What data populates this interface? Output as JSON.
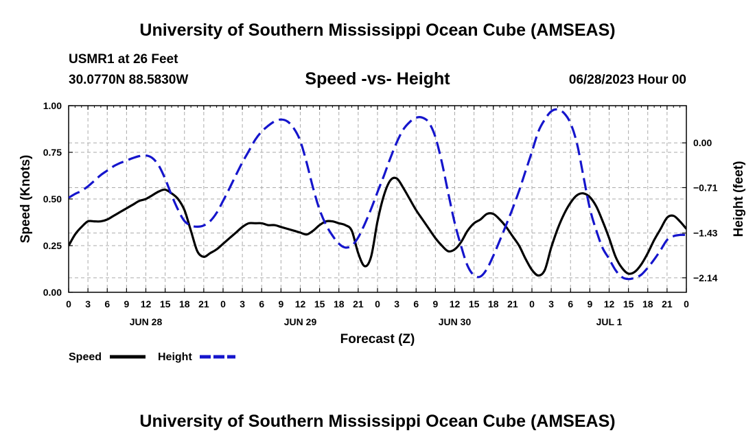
{
  "header": {
    "title": "University of Southern Mississippi Ocean Cube (AMSEAS)",
    "station": "USMR1 at 26 Feet",
    "coordinates": "30.0770N  88.5830W",
    "run_time": "06/28/2023 Hour 00"
  },
  "footer": {
    "title": "University of Southern Mississippi Ocean Cube (AMSEAS)"
  },
  "chart_data": {
    "type": "line",
    "title": "Speed -vs- Height",
    "xlabel": "Forecast (Z)",
    "ylabel": "Speed (Knots)",
    "y2label": "Height (feet)",
    "xlim": [
      0,
      96
    ],
    "ylim": [
      0,
      1
    ],
    "y2lim": [
      -2.37,
      0.59
    ],
    "x_tick_labels": [
      "0",
      "3",
      "6",
      "9",
      "12",
      "15",
      "18",
      "21",
      "0",
      "3",
      "6",
      "9",
      "12",
      "15",
      "18",
      "21",
      "0",
      "3",
      "6",
      "9",
      "12",
      "15",
      "18",
      "21",
      "0",
      "3",
      "6",
      "9",
      "12",
      "15",
      "18",
      "21",
      "0"
    ],
    "date_labels": [
      {
        "label": "JUN 28",
        "x": 12
      },
      {
        "label": "JUN 29",
        "x": 36
      },
      {
        "label": "JUN 30",
        "x": 60
      },
      {
        "label": "JUL 1",
        "x": 84
      }
    ],
    "y_ticks": [
      0.0,
      0.25,
      0.5,
      0.75,
      1.0
    ],
    "y_tick_labels": [
      "0.00",
      "0.25",
      "0.50",
      "0.75",
      "1.00"
    ],
    "y2_ticks": [
      -2.14,
      -1.43,
      -0.71,
      0.0
    ],
    "y2_tick_labels": [
      "−2.14",
      "−1.43",
      "−0.71",
      "0.00"
    ],
    "grid": true,
    "series": [
      {
        "name": "Speed",
        "axis": "left",
        "color": "#000000",
        "dash": "solid",
        "x": [
          0,
          1,
          2,
          3,
          4,
          5,
          6,
          7,
          8,
          9,
          10,
          11,
          12,
          13,
          14,
          15,
          16,
          17,
          18,
          19,
          20,
          21,
          22,
          23,
          24,
          25,
          26,
          27,
          28,
          29,
          30,
          31,
          32,
          33,
          34,
          35,
          36,
          37,
          38,
          39,
          40,
          41,
          42,
          43,
          44,
          45,
          46,
          47,
          48,
          49,
          50,
          51,
          52,
          53,
          54,
          55,
          56,
          57,
          58,
          59,
          60,
          61,
          62,
          63,
          64,
          65,
          66,
          67,
          68,
          69,
          70,
          71,
          72,
          73,
          74,
          75,
          76,
          77,
          78,
          79,
          80,
          81,
          82,
          83,
          84,
          85,
          86,
          87,
          88,
          89,
          90,
          91,
          92,
          93,
          94,
          95,
          96
        ],
        "values": [
          0.25,
          0.31,
          0.35,
          0.38,
          0.38,
          0.38,
          0.39,
          0.41,
          0.43,
          0.45,
          0.47,
          0.49,
          0.5,
          0.52,
          0.54,
          0.55,
          0.53,
          0.5,
          0.44,
          0.33,
          0.22,
          0.19,
          0.21,
          0.23,
          0.26,
          0.29,
          0.32,
          0.35,
          0.37,
          0.37,
          0.37,
          0.36,
          0.36,
          0.35,
          0.34,
          0.33,
          0.32,
          0.31,
          0.33,
          0.36,
          0.38,
          0.38,
          0.37,
          0.36,
          0.33,
          0.21,
          0.14,
          0.19,
          0.38,
          0.52,
          0.6,
          0.61,
          0.56,
          0.5,
          0.44,
          0.39,
          0.34,
          0.29,
          0.25,
          0.22,
          0.23,
          0.27,
          0.33,
          0.37,
          0.39,
          0.42,
          0.42,
          0.39,
          0.35,
          0.3,
          0.25,
          0.18,
          0.12,
          0.09,
          0.12,
          0.24,
          0.34,
          0.42,
          0.48,
          0.52,
          0.53,
          0.51,
          0.46,
          0.38,
          0.29,
          0.19,
          0.13,
          0.1,
          0.11,
          0.15,
          0.21,
          0.28,
          0.34,
          0.4,
          0.41,
          0.38,
          0.34
        ]
      },
      {
        "name": "Height",
        "axis": "right",
        "color": "#1515cc",
        "dash": "dashed",
        "x": [
          0,
          1,
          2,
          3,
          4,
          5,
          6,
          7,
          8,
          9,
          10,
          11,
          12,
          13,
          14,
          15,
          16,
          17,
          18,
          19,
          20,
          21,
          22,
          23,
          24,
          25,
          26,
          27,
          28,
          29,
          30,
          31,
          32,
          33,
          34,
          35,
          36,
          37,
          38,
          39,
          40,
          41,
          42,
          43,
          44,
          45,
          46,
          47,
          48,
          49,
          50,
          51,
          52,
          53,
          54,
          55,
          56,
          57,
          58,
          59,
          60,
          61,
          62,
          63,
          64,
          65,
          66,
          67,
          68,
          69,
          70,
          71,
          72,
          73,
          74,
          75,
          76,
          77,
          78,
          79,
          80,
          81,
          82,
          83,
          84,
          85,
          86,
          87,
          88,
          89,
          90,
          91,
          92,
          93,
          94,
          95,
          96
        ],
        "values": [
          -0.87,
          -0.81,
          -0.76,
          -0.69,
          -0.6,
          -0.51,
          -0.44,
          -0.37,
          -0.32,
          -0.28,
          -0.24,
          -0.21,
          -0.2,
          -0.24,
          -0.36,
          -0.57,
          -0.83,
          -1.06,
          -1.24,
          -1.31,
          -1.33,
          -1.31,
          -1.24,
          -1.11,
          -0.92,
          -0.72,
          -0.51,
          -0.31,
          -0.13,
          0.05,
          0.18,
          0.27,
          0.34,
          0.37,
          0.34,
          0.23,
          0.03,
          -0.32,
          -0.72,
          -1.06,
          -1.3,
          -1.47,
          -1.6,
          -1.66,
          -1.63,
          -1.5,
          -1.29,
          -1.05,
          -0.78,
          -0.52,
          -0.24,
          0.01,
          0.21,
          0.33,
          0.4,
          0.4,
          0.32,
          0.09,
          -0.31,
          -0.8,
          -1.27,
          -1.64,
          -1.95,
          -2.1,
          -2.12,
          -2.0,
          -1.79,
          -1.55,
          -1.3,
          -1.04,
          -0.76,
          -0.45,
          -0.14,
          0.18,
          0.37,
          0.5,
          0.53,
          0.47,
          0.31,
          -0.01,
          -0.53,
          -1.04,
          -1.39,
          -1.67,
          -1.84,
          -2.02,
          -2.13,
          -2.16,
          -2.14,
          -2.09,
          -1.98,
          -1.85,
          -1.7,
          -1.54,
          -1.48,
          -1.46,
          -1.46
        ]
      }
    ],
    "legend": {
      "position": "bottom-left",
      "items": [
        {
          "label": "Speed",
          "color": "#000000",
          "dash": "solid"
        },
        {
          "label": "Height",
          "color": "#1515cc",
          "dash": "dashed"
        }
      ]
    }
  }
}
